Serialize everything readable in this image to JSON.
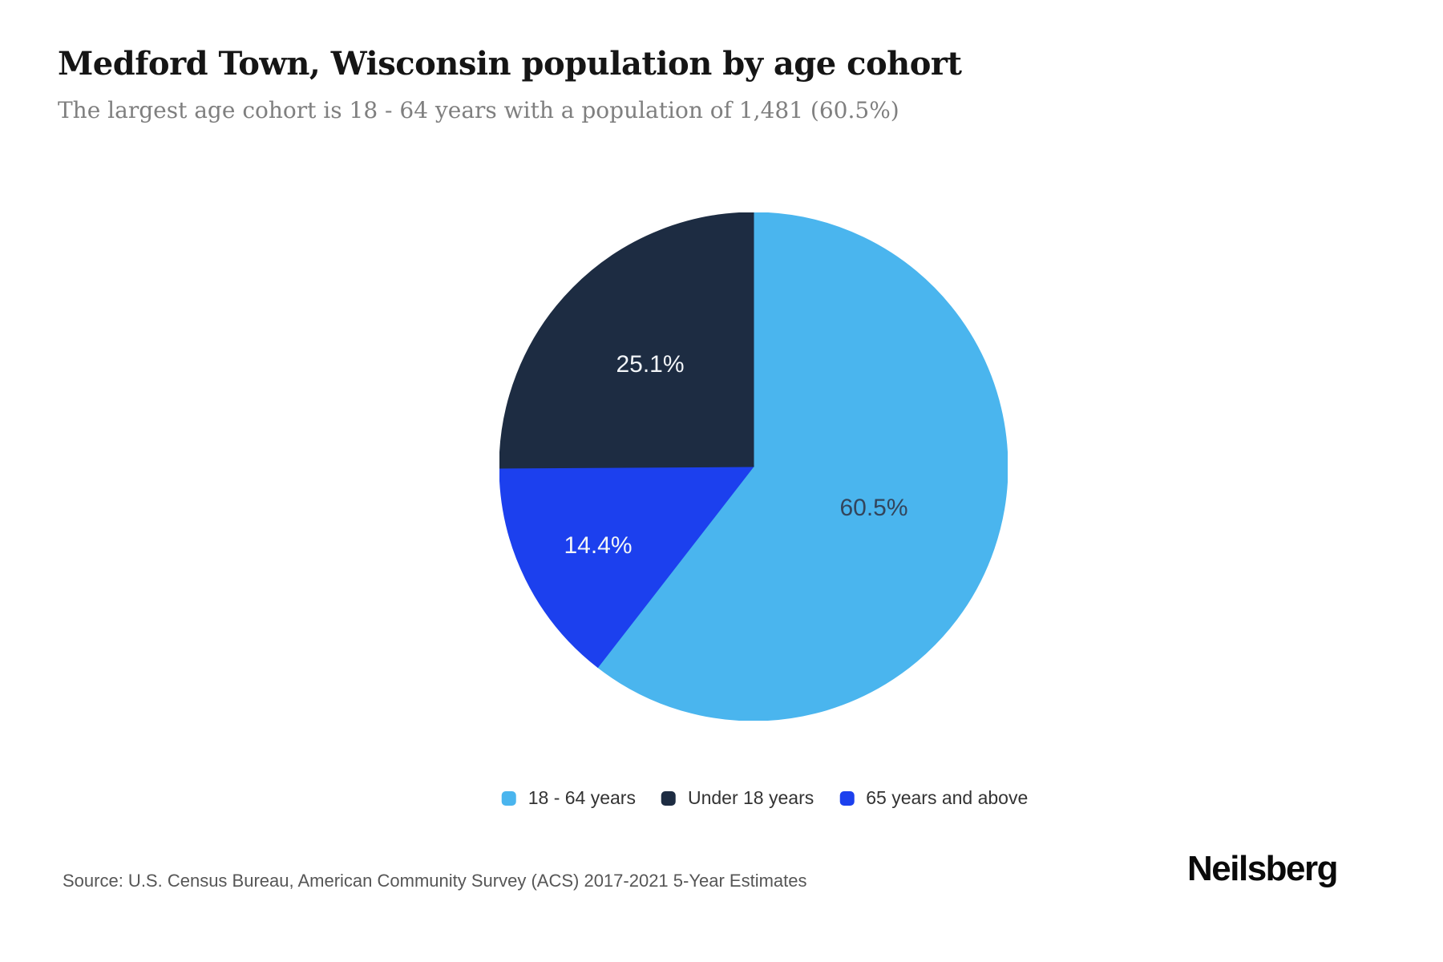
{
  "header": {
    "title": "Medford Town, Wisconsin population by age cohort",
    "subtitle": "The largest age cohort is 18 - 64 years with a population of 1,481 (60.5%)"
  },
  "chart_data": {
    "type": "pie",
    "title": "Medford Town, Wisconsin population by age cohort",
    "subtitle": "The largest age cohort is 18 - 64 years with a population of 1,481 (60.5%)",
    "start_angle_deg": 0,
    "direction": "clockwise",
    "largest_cohort": {
      "label": "18 - 64 years",
      "population": "1,481",
      "share": "60.5%"
    },
    "slices": [
      {
        "label": "18 - 64 years",
        "value": 60.5,
        "display": "60.5%",
        "color": "#4ab5ee",
        "text_color": "#33455c"
      },
      {
        "label": "65 years and above",
        "value": 14.4,
        "display": "14.4%",
        "color": "#1c40ee",
        "text_color": "#f2f5f8"
      },
      {
        "label": "Under 18 years",
        "value": 25.1,
        "display": "25.1%",
        "color": "#1d2c42",
        "text_color": "#f2f5f8"
      }
    ]
  },
  "legend": {
    "items": [
      {
        "label": "18 - 64 years",
        "color": "#4ab5ee"
      },
      {
        "label": "Under 18 years",
        "color": "#1d2c42"
      },
      {
        "label": "65 years and above",
        "color": "#1c40ee"
      }
    ]
  },
  "footer": {
    "source_text": "Source: U.S. Census Bureau, American Community Survey (ACS) 2017-2021 5-Year Estimates",
    "brand": "Neilsberg"
  }
}
